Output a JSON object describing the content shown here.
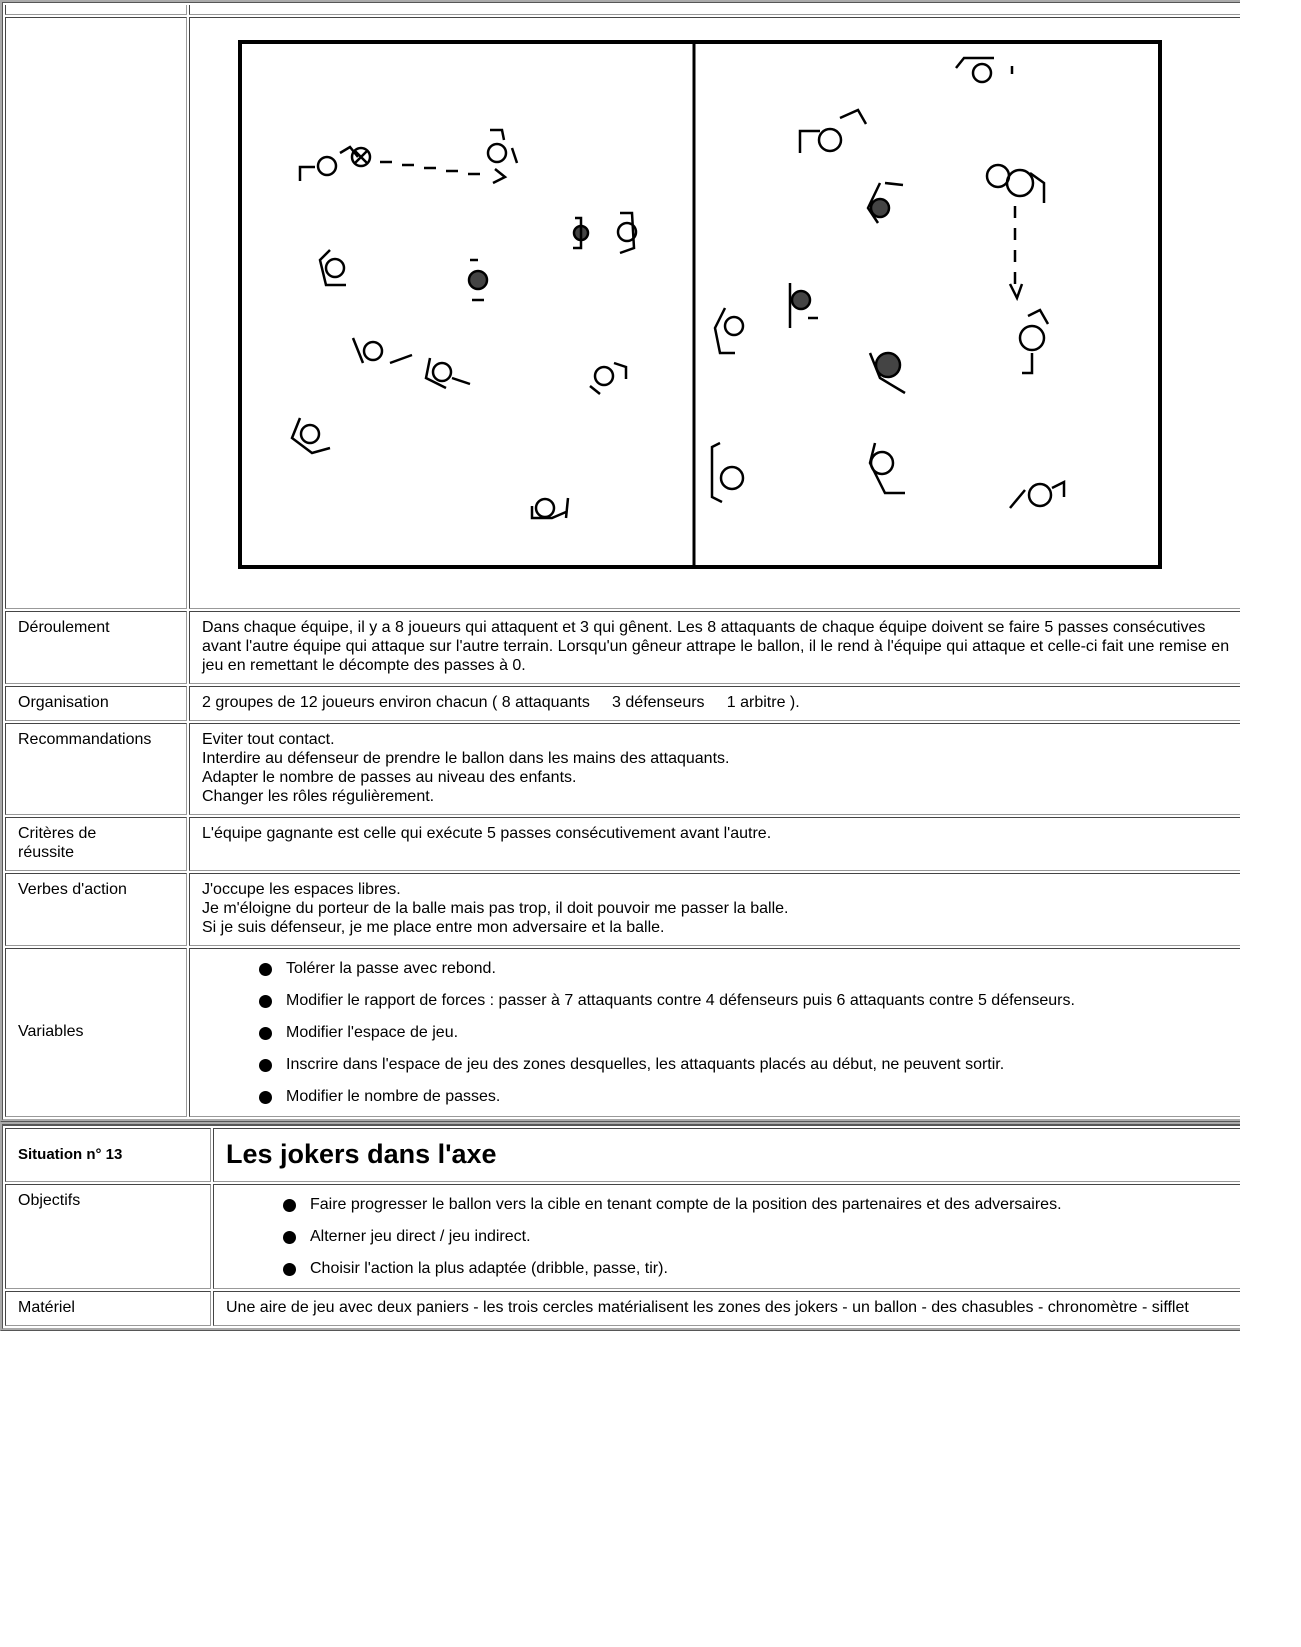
{
  "table1": {
    "rows": [
      {
        "label": "Déroulement",
        "text": "Dans chaque équipe, il y a 8 joueurs qui attaquent et 3 qui gênent. Les 8 attaquants de chaque équipe doivent se faire 5 passes consécutives avant l'autre équipe qui attaque sur l'autre terrain. Lorsqu'un gêneur attrape le ballon, il le rend à l'équipe qui attaque et celle-ci fait une remise en jeu en remettant le décompte des passes à 0."
      },
      {
        "label": "Organisation",
        "text": "2 groupes de 12 joueurs environ chacun ( 8 attaquants     3 défenseurs     1 arbitre )."
      },
      {
        "label": "Recommandations",
        "lines": [
          "Eviter tout contact.",
          "Interdire au défenseur de prendre le ballon dans les mains des attaquants.",
          "Adapter le nombre de passes au niveau des enfants.",
          "Changer les rôles régulièrement."
        ]
      },
      {
        "label": [
          "Critères de",
          "réussite"
        ],
        "text": "L'équipe gagnante est celle qui exécute 5 passes consécutivement avant l'autre."
      },
      {
        "label": "Verbes d'action",
        "lines": [
          "J'occupe les espaces libres.",
          "Je m'éloigne du porteur de la balle mais pas trop, il doit pouvoir me passer la balle.",
          "Si je suis défenseur, je me place entre mon adversaire et la balle."
        ]
      },
      {
        "label": "Variables",
        "items": [
          "Tolérer la passe avec rebond.",
          "Modifier le rapport de forces : passer à 7 attaquants contre 4 défenseurs puis 6 attaquants contre 5 défenseurs.",
          "Modifier l'espace de jeu.",
          "Inscrire dans l'espace de jeu des zones desquelles, les attaquants placés au début, ne peuvent sortir.",
          "Modifier le nombre de passes."
        ]
      }
    ]
  },
  "table2": {
    "situation": "Situation n° 13",
    "title": "Les jokers dans l'axe",
    "rows": [
      {
        "label": "Objectifs",
        "items": [
          "Faire progresser le ballon vers la cible en tenant compte de la position des partenaires et des adversaires.",
          "Alterner jeu direct / jeu indirect.",
          "Choisir l'action la plus adaptée (dribble, passe, tir)."
        ]
      },
      {
        "label": "Matériel",
        "text": "Une aire de jeu avec deux paniers - les trois cercles matérialisent les zones des jokers - un ballon - des chasubles - chronomètre - sifflet"
      }
    ]
  }
}
